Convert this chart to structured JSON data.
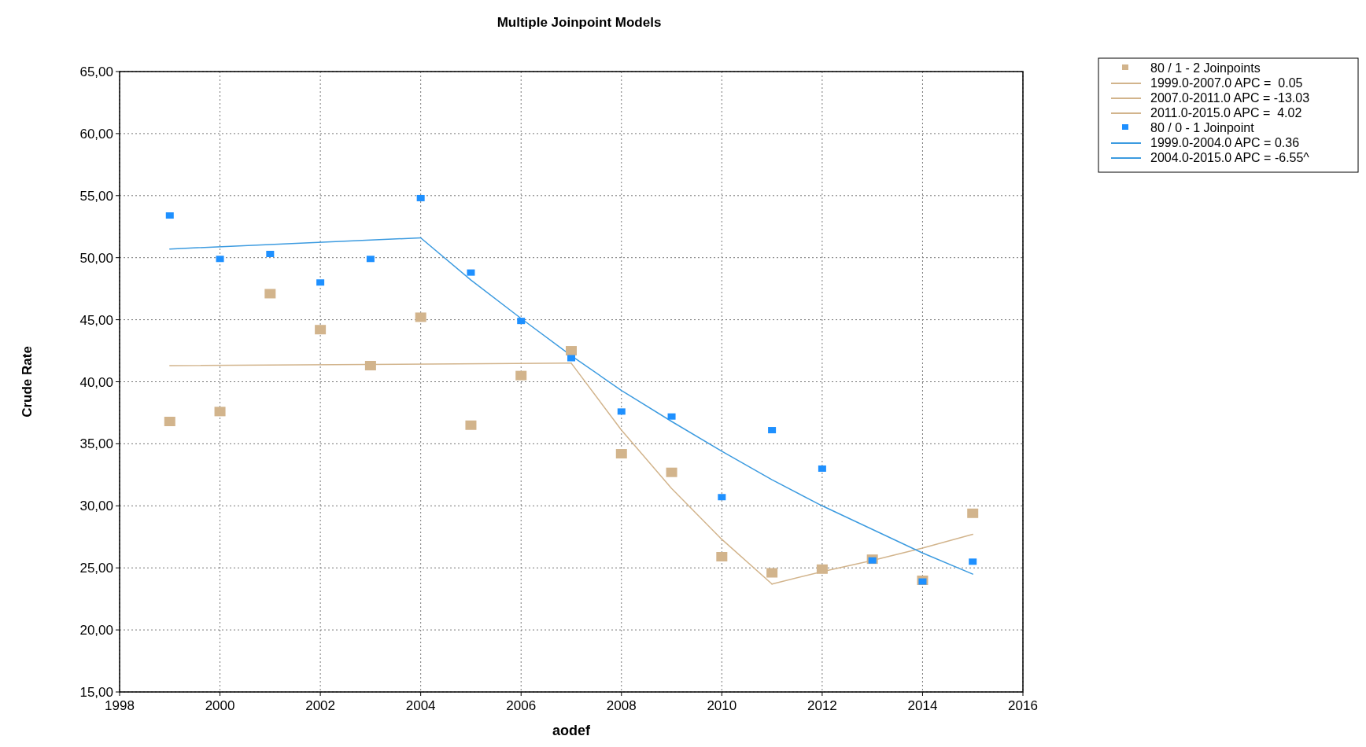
{
  "chart_data": {
    "type": "scatter",
    "title": "Multiple Joinpoint Models",
    "xlabel": "aodef",
    "ylabel": "Crude Rate",
    "x": [
      1999,
      2000,
      2001,
      2002,
      2003,
      2004,
      2005,
      2006,
      2007,
      2008,
      2009,
      2010,
      2011,
      2012,
      2013,
      2014,
      2015
    ],
    "series": [
      {
        "name": "80 / 1 - 2 Joinpoints",
        "marker": "square",
        "color": "#d2b48c",
        "values": [
          36.8,
          37.6,
          47.1,
          44.2,
          41.3,
          45.2,
          36.5,
          40.5,
          42.5,
          34.2,
          32.7,
          25.9,
          24.6,
          24.9,
          25.7,
          24.0,
          29.4
        ]
      },
      {
        "name": "1999.0-2007.0 APC =  0.05",
        "type": "line",
        "color": "#d2b48c",
        "x": [
          1999,
          2007
        ],
        "values": [
          41.3,
          41.5
        ]
      },
      {
        "name": "2007.0-2011.0 APC = -13.03",
        "type": "line",
        "color": "#d2b48c",
        "x": [
          2007,
          2008,
          2009,
          2010,
          2011
        ],
        "values": [
          41.5,
          36.1,
          31.4,
          27.3,
          23.7
        ]
      },
      {
        "name": "2011.0-2015.0 APC =  4.02",
        "type": "line",
        "color": "#d2b48c",
        "x": [
          2011,
          2012,
          2013,
          2014,
          2015
        ],
        "values": [
          23.7,
          24.7,
          25.6,
          26.6,
          27.7
        ]
      },
      {
        "name": "80 / 0 - 1 Joinpoint",
        "marker": "square",
        "color": "#1e90ff",
        "values": [
          53.4,
          49.9,
          50.3,
          48.0,
          49.9,
          54.8,
          48.8,
          44.9,
          41.9,
          37.6,
          37.2,
          30.7,
          36.1,
          33.0,
          25.6,
          23.9,
          25.5
        ]
      },
      {
        "name": "1999.0-2004.0 APC = 0.36",
        "type": "line",
        "color": "#3c9be0",
        "x": [
          1999,
          2004
        ],
        "values": [
          50.7,
          51.6
        ]
      },
      {
        "name": "2004.0-2015.0 APC = -6.55^",
        "type": "line",
        "color": "#3c9be0",
        "x": [
          2004,
          2005,
          2006,
          2007,
          2008,
          2009,
          2010,
          2011,
          2012,
          2013,
          2014,
          2015
        ],
        "values": [
          51.6,
          48.2,
          45.1,
          42.1,
          39.3,
          36.8,
          34.4,
          32.1,
          30.0,
          28.1,
          26.2,
          24.5
        ]
      }
    ],
    "xlim": [
      1998,
      2016
    ],
    "xticks": [
      1998,
      2000,
      2002,
      2004,
      2006,
      2008,
      2010,
      2012,
      2014,
      2016
    ],
    "ylim": [
      15,
      65
    ],
    "yticks": [
      {
        "value": 15,
        "label": "15,00"
      },
      {
        "value": 20,
        "label": "20,00"
      },
      {
        "value": 25,
        "label": "25,00"
      },
      {
        "value": 30,
        "label": "30,00"
      },
      {
        "value": 35,
        "label": "35,00"
      },
      {
        "value": 40,
        "label": "40,00"
      },
      {
        "value": 45,
        "label": "45,00"
      },
      {
        "value": 50,
        "label": "50,00"
      },
      {
        "value": 55,
        "label": "55,00"
      },
      {
        "value": 60,
        "label": "60,00"
      },
      {
        "value": 65,
        "label": "65,00"
      }
    ],
    "grid": true,
    "legend": "top right"
  }
}
